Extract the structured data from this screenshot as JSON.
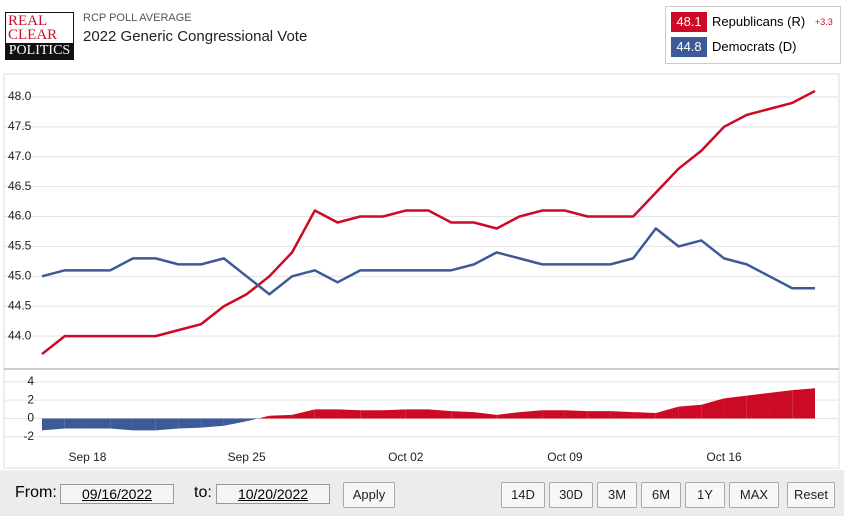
{
  "logo": [
    "REAL",
    "CLEAR",
    "POLITICS"
  ],
  "header": {
    "kicker": "RCP POLL AVERAGE",
    "title": "2022 Generic Congressional Vote",
    "lead": "+3.3"
  },
  "chart_data": {
    "type": "line",
    "categories": [
      null,
      null,
      "Sep 18",
      null,
      null,
      null,
      null,
      null,
      null,
      "Sep 25",
      null,
      null,
      null,
      null,
      null,
      null,
      "Oct 02",
      null,
      null,
      null,
      null,
      null,
      null,
      "Oct 09",
      null,
      null,
      null,
      null,
      null,
      null,
      "Oct 16",
      null,
      null,
      null,
      null
    ],
    "series": [
      {
        "name": "Republicans (R)",
        "color": "#cc0a25",
        "values": [
          43.7,
          44.0,
          44.0,
          44.0,
          44.0,
          44.0,
          44.1,
          44.2,
          44.5,
          44.7,
          45.0,
          45.4,
          46.1,
          45.9,
          46.0,
          46.0,
          46.1,
          46.1,
          45.9,
          45.9,
          45.8,
          46.0,
          46.1,
          46.1,
          46.0,
          46.0,
          46.0,
          46.4,
          46.8,
          47.1,
          47.5,
          47.7,
          47.8,
          47.9,
          48.1
        ]
      },
      {
        "name": "Democrats (D)",
        "color": "#3d5a98",
        "values": [
          45.0,
          45.1,
          45.1,
          45.1,
          45.3,
          45.3,
          45.2,
          45.2,
          45.3,
          45.0,
          44.7,
          45.0,
          45.1,
          44.9,
          45.1,
          45.1,
          45.1,
          45.1,
          45.1,
          45.2,
          45.4,
          45.3,
          45.2,
          45.2,
          45.2,
          45.2,
          45.3,
          45.8,
          45.5,
          45.6,
          45.3,
          45.2,
          45.0,
          44.8,
          44.8
        ]
      }
    ],
    "ylim": [
      43.45,
      48.35
    ],
    "yticks": [
      {
        "value": 44,
        "label": "44.0"
      },
      {
        "value": 44.5,
        "label": "44.5"
      },
      {
        "value": 45,
        "label": "45.0"
      },
      {
        "value": 45.5,
        "label": "45.5"
      },
      {
        "value": 46,
        "label": "46.0"
      },
      {
        "value": 46.5,
        "label": "46.5"
      },
      {
        "value": 47,
        "label": "47.0"
      },
      {
        "value": 47.5,
        "label": "47.5"
      },
      {
        "value": 48,
        "label": "48.0"
      }
    ],
    "spread_ylim": [
      -2.9,
      5.3
    ],
    "spread_yticks": [
      4,
      2,
      0,
      -2
    ],
    "grid": true
  },
  "controls": {
    "from_label": "From:",
    "from": "09/16/2022",
    "to_label": "to:",
    "to": "10/20/2022",
    "apply": "Apply",
    "ranges": [
      "14D",
      "30D",
      "3M",
      "6M",
      "1Y",
      "MAX",
      "Reset"
    ]
  }
}
